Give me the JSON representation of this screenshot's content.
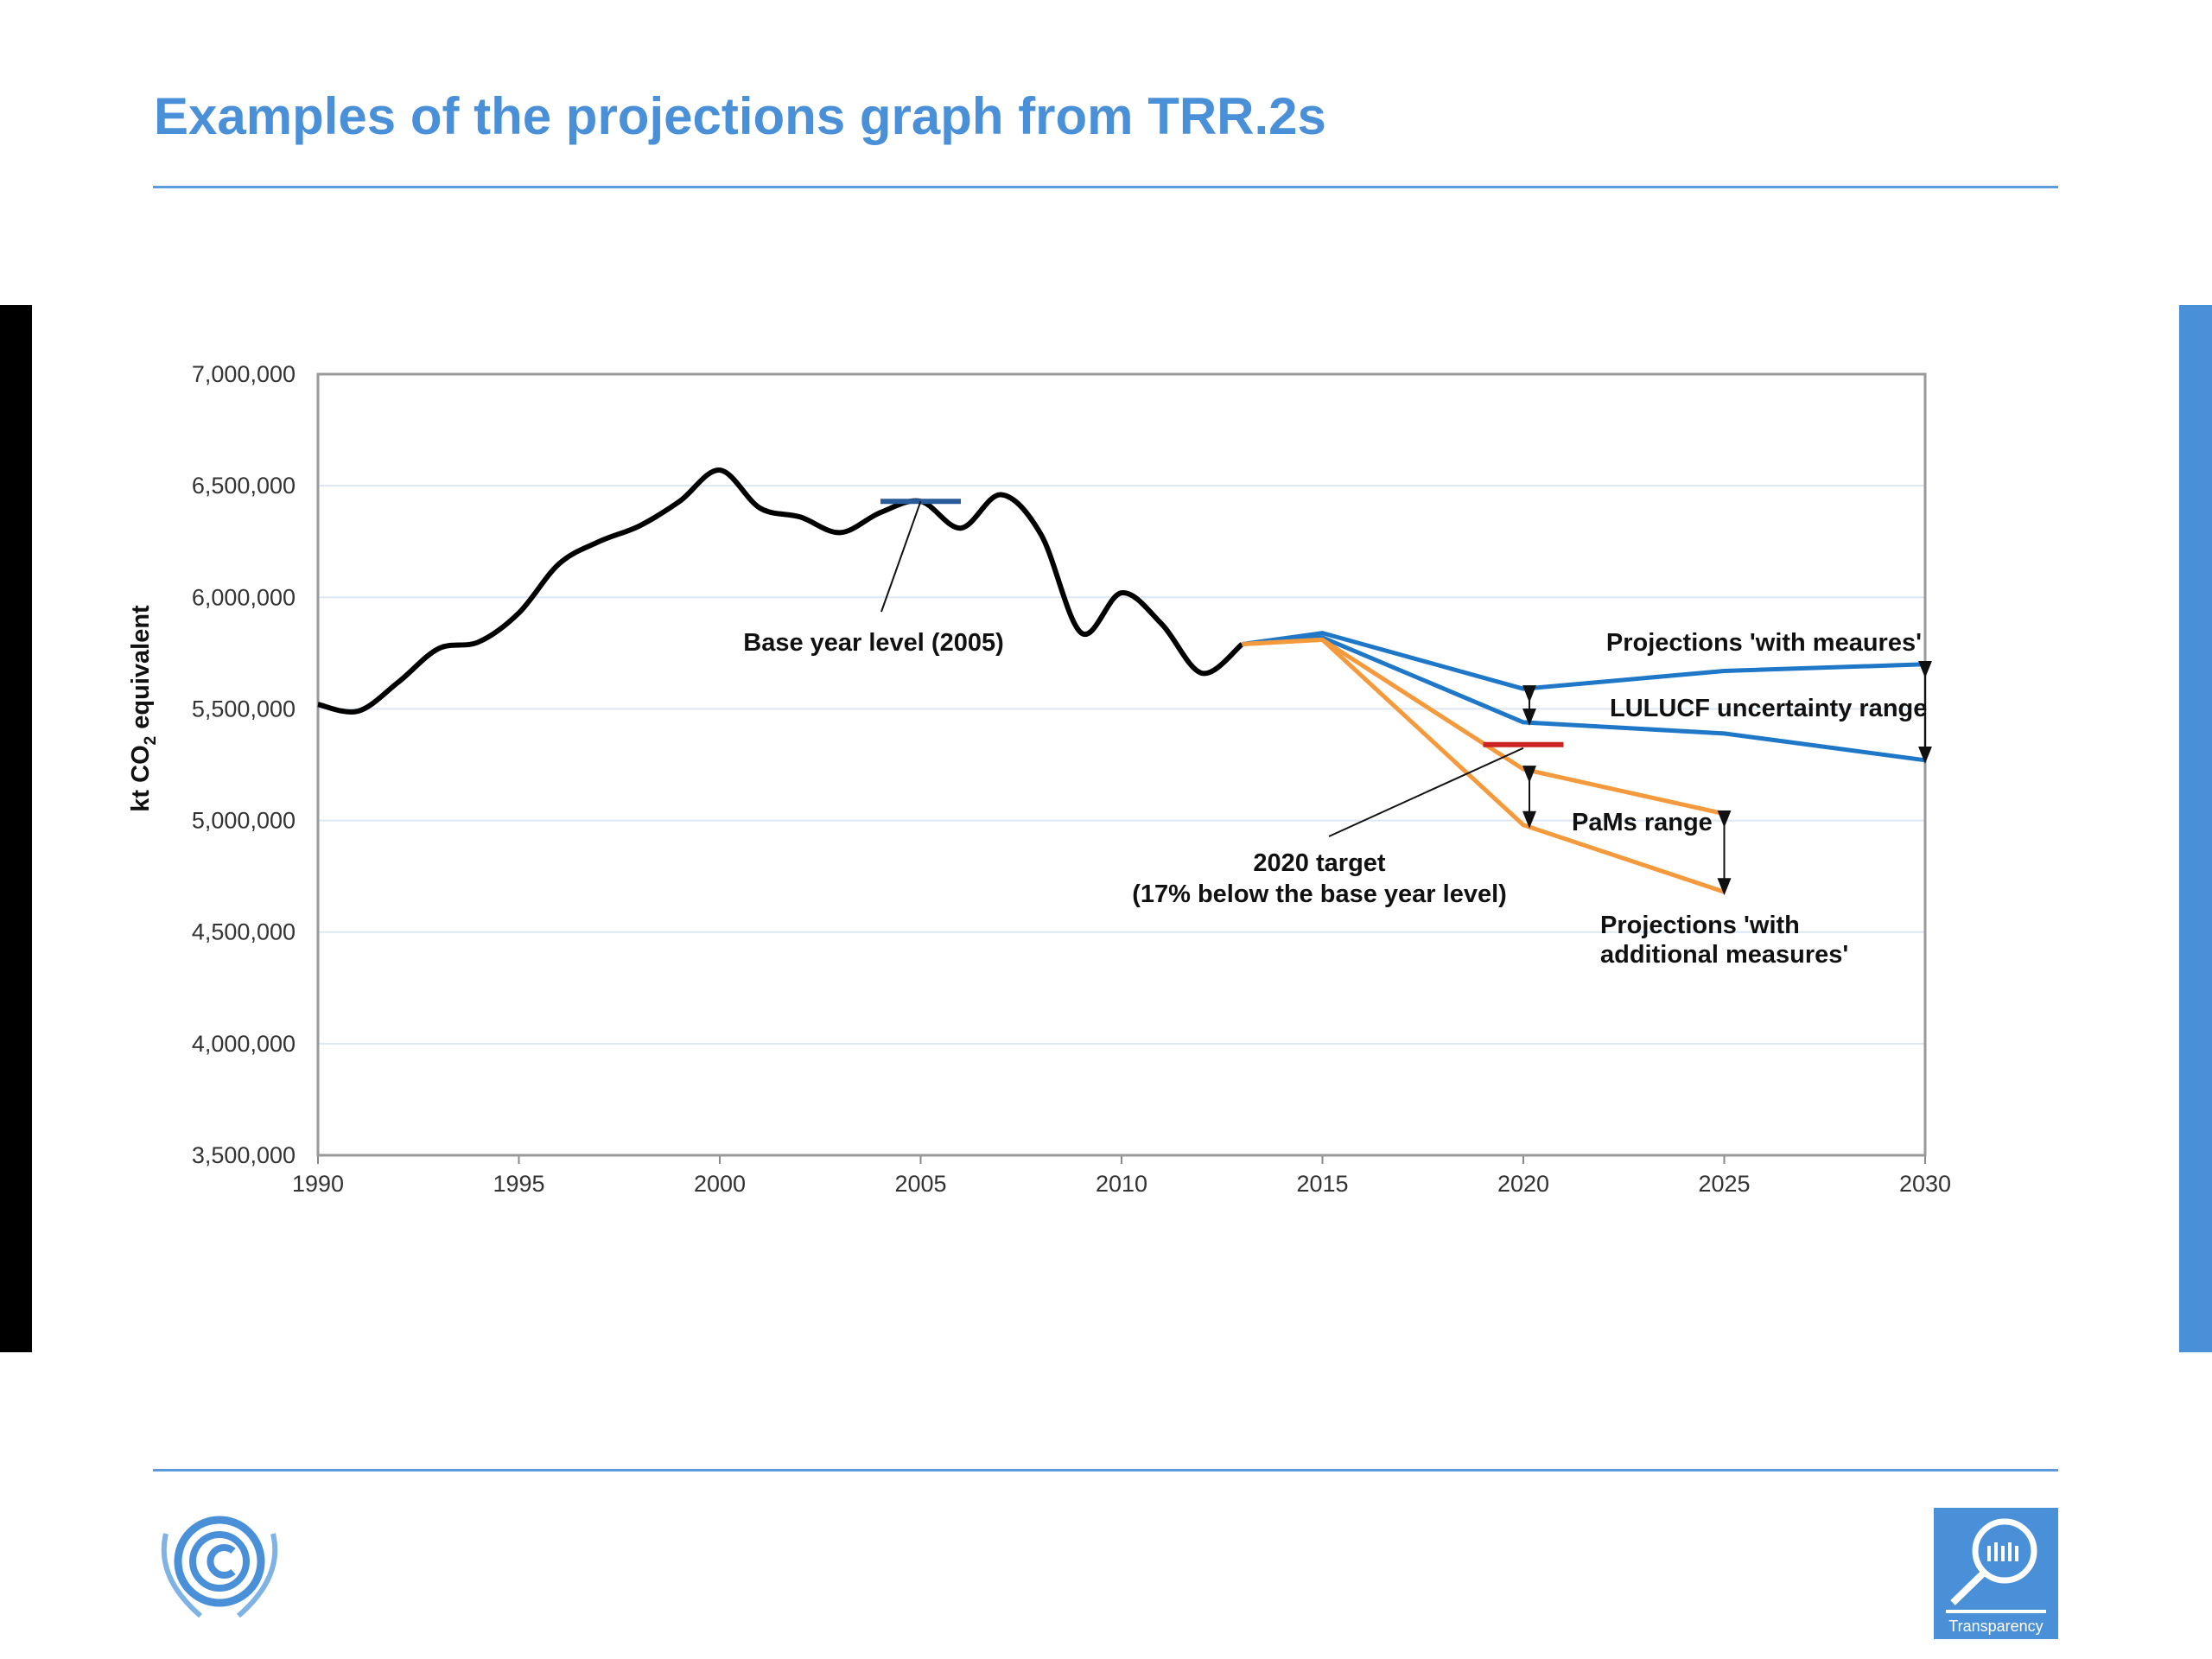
{
  "title": "Examples of the projections graph from TRR.2s",
  "colors": {
    "title": "#4a90d9",
    "historical": "#000000",
    "wm": "#1f77c8",
    "wam": "#f59a3c",
    "target": "#cc2222",
    "base": "#2a5a9a"
  },
  "logos": {
    "right_label": "Transparency"
  },
  "chart_data": {
    "type": "line",
    "ylabel": "kt CO2 equivalent",
    "ylabel_main": "kt CO",
    "ylabel_sub": "2",
    "ylabel_tail": " equivalent",
    "xlim": [
      1990,
      2030
    ],
    "ylim": [
      3500000,
      7000000
    ],
    "grid": true,
    "x_ticks": [
      "1990",
      "1995",
      "2000",
      "2005",
      "2010",
      "2015",
      "2020",
      "2025",
      "2030"
    ],
    "y_ticks": [
      "7,000,000",
      "6,500,000",
      "6,000,000",
      "5,500,000",
      "5,000,000",
      "4,500,000",
      "4,000,000",
      "3,500,000"
    ],
    "series": [
      {
        "key": "historical",
        "x": [
          1990,
          1991,
          1992,
          1993,
          1994,
          1995,
          1996,
          1997,
          1998,
          1999,
          2000,
          2001,
          2002,
          2003,
          2004,
          2005,
          2006,
          2007,
          2008,
          2009,
          2010,
          2011,
          2012,
          2013
        ],
        "y": [
          5520000,
          5490000,
          5620000,
          5770000,
          5800000,
          5930000,
          6150000,
          6250000,
          6320000,
          6430000,
          6570000,
          6400000,
          6360000,
          6290000,
          6380000,
          6430000,
          6310000,
          6460000,
          6280000,
          5840000,
          6020000,
          5880000,
          5660000,
          5790000
        ]
      },
      {
        "key": "wm_upper",
        "x": [
          2013,
          2015,
          2020,
          2025,
          2030
        ],
        "y": [
          5790000,
          5840000,
          5590000,
          5670000,
          5700000
        ]
      },
      {
        "key": "wm_lower",
        "x": [
          2013,
          2015,
          2020,
          2025,
          2030
        ],
        "y": [
          5790000,
          5820000,
          5440000,
          5390000,
          5270000
        ]
      },
      {
        "key": "wam_upper",
        "x": [
          2013,
          2015,
          2020,
          2025
        ],
        "y": [
          5790000,
          5810000,
          5230000,
          5030000
        ]
      },
      {
        "key": "wam_lower",
        "x": [
          2013,
          2015,
          2020,
          2025
        ],
        "y": [
          5790000,
          5810000,
          4980000,
          4680000
        ]
      }
    ],
    "base_year_level": {
      "x": [
        2004,
        2006
      ],
      "y": 6430000
    },
    "target_2020": {
      "x": [
        2019,
        2021
      ],
      "y": 5340000
    },
    "annotations": {
      "base_year": "Base year level (2005)",
      "wm": "Projections 'with meaures'",
      "lulucf": "LULUCF uncertainty range",
      "pams": "PaMs range",
      "target_line1": "2020 target",
      "target_line2": "(17% below the base year level)",
      "wam_line1": "Projections 'with",
      "wam_line2": "additional measures'"
    }
  }
}
